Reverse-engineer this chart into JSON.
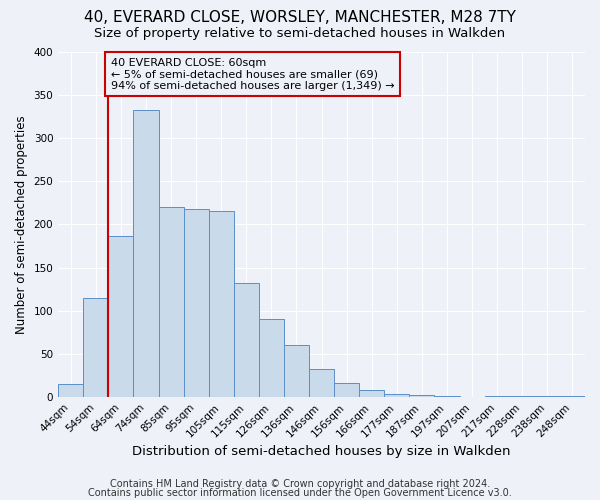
{
  "title": "40, EVERARD CLOSE, WORSLEY, MANCHESTER, M28 7TY",
  "subtitle": "Size of property relative to semi-detached houses in Walkden",
  "xlabel": "Distribution of semi-detached houses by size in Walkden",
  "ylabel": "Number of semi-detached properties",
  "bin_labels": [
    "44sqm",
    "54sqm",
    "64sqm",
    "74sqm",
    "85sqm",
    "95sqm",
    "105sqm",
    "115sqm",
    "126sqm",
    "136sqm",
    "146sqm",
    "156sqm",
    "166sqm",
    "177sqm",
    "187sqm",
    "197sqm",
    "207sqm",
    "217sqm",
    "228sqm",
    "238sqm",
    "248sqm"
  ],
  "bar_heights": [
    15,
    115,
    187,
    332,
    220,
    218,
    215,
    132,
    91,
    61,
    33,
    16,
    8,
    4,
    2,
    1,
    0,
    1,
    1,
    1,
    1
  ],
  "bar_color": "#c9daea",
  "bar_edge_color": "#5b8fc9",
  "marker_label": "40 EVERARD CLOSE: 60sqm",
  "marker_smaller": "← 5% of semi-detached houses are smaller (69)",
  "marker_larger": "94% of semi-detached houses are larger (1,349) →",
  "marker_line_color": "#cc0000",
  "annotation_box_edge_color": "#cc0000",
  "ylim": [
    0,
    400
  ],
  "yticks": [
    0,
    50,
    100,
    150,
    200,
    250,
    300,
    350,
    400
  ],
  "footer1": "Contains HM Land Registry data © Crown copyright and database right 2024.",
  "footer2": "Contains public sector information licensed under the Open Government Licence v3.0.",
  "background_color": "#eef2f8",
  "grid_color": "#ffffff",
  "title_fontsize": 11,
  "subtitle_fontsize": 9.5,
  "xlabel_fontsize": 9.5,
  "ylabel_fontsize": 8.5,
  "tick_fontsize": 7.5,
  "annotation_fontsize": 8,
  "footer_fontsize": 7
}
